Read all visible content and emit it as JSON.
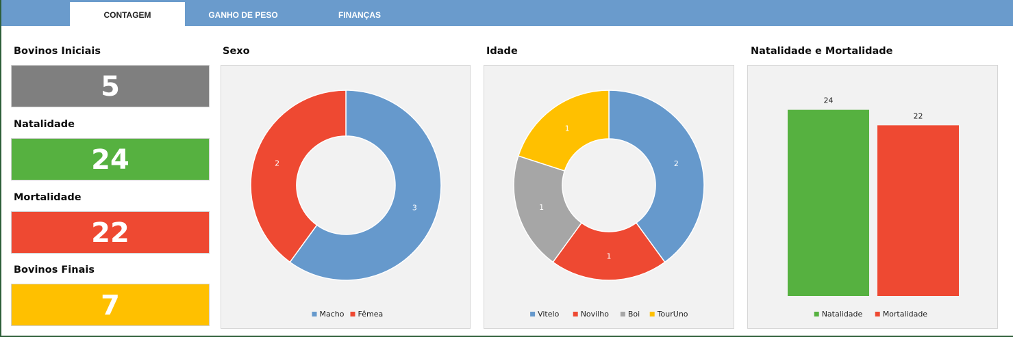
{
  "tabs": [
    {
      "label": "CONTAGEM",
      "active": true
    },
    {
      "label": "GANHO DE PESO",
      "active": false
    },
    {
      "label": "FINANÇAS",
      "active": false
    }
  ],
  "kpis": [
    {
      "title": "Bovinos Iniciais",
      "value": "5",
      "color": "#7f7f7f"
    },
    {
      "title": "Natalidade",
      "value": "24",
      "color": "#56b140"
    },
    {
      "title": "Mortalidade",
      "value": "22",
      "color": "#ee4932"
    },
    {
      "title": "Bovinos Finais",
      "value": "7",
      "color": "#ffc000"
    }
  ],
  "chart_data": [
    {
      "type": "pie",
      "title": "Sexo",
      "donut": true,
      "categories": [
        "Macho",
        "Fêmea"
      ],
      "values": [
        3,
        2
      ],
      "colors": [
        "#6699cc",
        "#ee4932"
      ],
      "legend": "bottom"
    },
    {
      "type": "pie",
      "title": "Idade",
      "donut": true,
      "categories": [
        "Vitelo",
        "Novilho",
        "Boi",
        "TourUno"
      ],
      "values": [
        2,
        1,
        1,
        1
      ],
      "colors": [
        "#6699cc",
        "#ee4932",
        "#a6a6a6",
        "#ffc000"
      ],
      "legend": "bottom"
    },
    {
      "type": "bar",
      "title": "Natalidade e Mortalidade",
      "categories": [
        "Natalidade",
        "Mortalidade"
      ],
      "values": [
        24,
        22
      ],
      "colors": [
        "#56b140",
        "#ee4932"
      ],
      "ylim": [
        0,
        26.7
      ],
      "grid": false,
      "legend": "bottom"
    }
  ]
}
